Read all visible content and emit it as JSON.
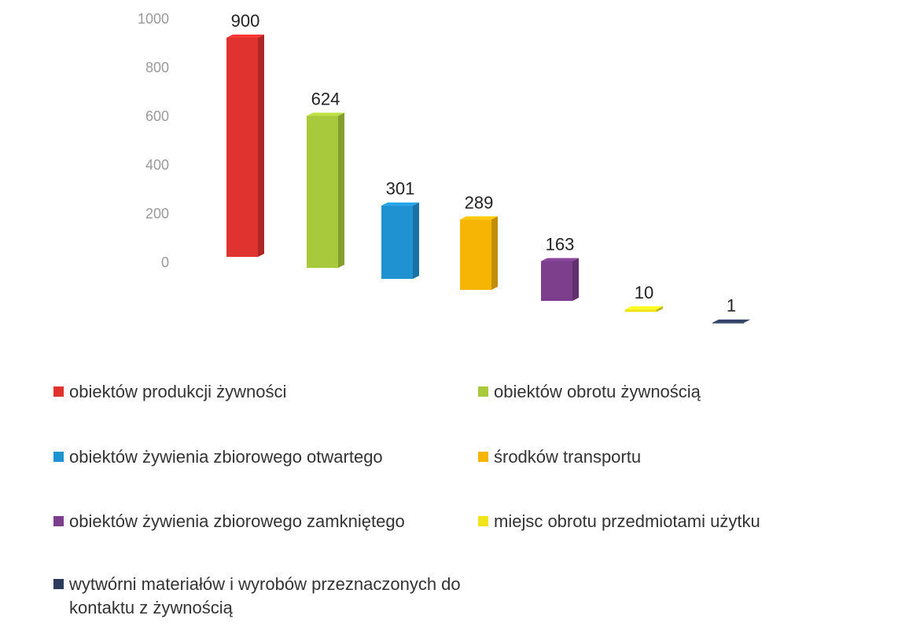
{
  "chart_data": {
    "type": "bar",
    "ylim": [
      0,
      1000
    ],
    "yticks": [
      0,
      200,
      400,
      600,
      800,
      1000
    ],
    "series": [
      {
        "name": "obiektów produkcji żywności",
        "color": "#e0322f",
        "values": [
          900
        ]
      },
      {
        "name": "obiektów obrotu żywnością",
        "color": "#a9c93c",
        "values": [
          624
        ]
      },
      {
        "name": "obiektów żywienia zbiorowego otwartego",
        "color": "#1f93d2",
        "values": [
          301
        ]
      },
      {
        "name": "środków transportu",
        "color": "#f6b505",
        "values": [
          289
        ]
      },
      {
        "name": "obiektów żywienia zbiorowego zamkniętego",
        "color": "#7d3f8c",
        "values": [
          163
        ]
      },
      {
        "name": "miejsc obrotu przedmiotami użytku",
        "color": "#f2e41c",
        "values": [
          10
        ]
      },
      {
        "name": "wytwórni materiałów i wyrobów przeznaczonych do kontaktu z żywnością",
        "color": "#2b3b5c",
        "values": [
          1
        ]
      }
    ]
  }
}
